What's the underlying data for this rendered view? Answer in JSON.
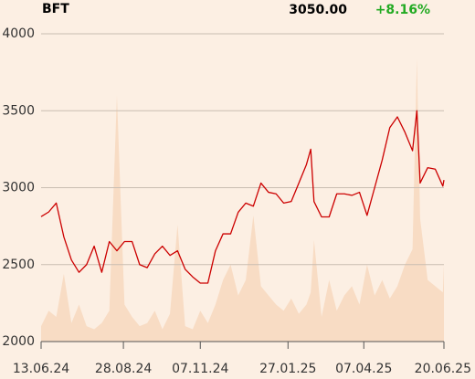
{
  "chart_data": {
    "type": "line",
    "title": "BFT",
    "last_price": "3050.00",
    "change": "+8.16%",
    "x": [
      "13.06.24",
      "20.06.24",
      "27.06.24",
      "04.07.24",
      "11.07.24",
      "18.07.24",
      "25.07.24",
      "01.08.24",
      "08.08.24",
      "15.08.24",
      "22.08.24",
      "29.08.24",
      "05.09.24",
      "12.09.24",
      "19.09.24",
      "26.09.24",
      "03.10.24",
      "10.10.24",
      "17.10.24",
      "24.10.24",
      "31.10.24",
      "07.11.24",
      "14.11.24",
      "21.11.24",
      "28.11.24",
      "05.12.24",
      "12.12.24",
      "19.12.24",
      "26.12.24",
      "02.01.25",
      "09.01.25",
      "16.01.25",
      "23.01.25",
      "30.01.25",
      "06.02.25",
      "13.02.25",
      "17.02.25",
      "20.02.25",
      "27.02.25",
      "06.03.25",
      "13.03.25",
      "20.03.25",
      "27.03.25",
      "03.04.25",
      "10.04.25",
      "17.04.25",
      "24.04.25",
      "01.05.25",
      "08.05.25",
      "15.05.25",
      "22.05.25",
      "26.05.25",
      "29.05.25",
      "05.06.25",
      "12.06.25",
      "19.06.25",
      "20.06.25"
    ],
    "series": [
      {
        "color": "#cc0000",
        "values": [
          2812,
          2842,
          2900,
          2680,
          2530,
          2450,
          2500,
          2620,
          2450,
          2650,
          2590,
          2650,
          2650,
          2500,
          2480,
          2570,
          2620,
          2560,
          2590,
          2470,
          2420,
          2380,
          2380,
          2590,
          2700,
          2700,
          2840,
          2900,
          2880,
          3030,
          2970,
          2960,
          2900,
          2910,
          3030,
          3150,
          3250,
          2910,
          2810,
          2810,
          2960,
          2960,
          2950,
          2970,
          2820,
          3000,
          3180,
          3390,
          3460,
          3360,
          3240,
          3500,
          3030,
          3130,
          3120,
          3010,
          3050
        ]
      },
      {
        "color": "#f8dcc4",
        "axis": "y2",
        "values": [
          5,
          10,
          8,
          22,
          6,
          12,
          5,
          4,
          6,
          10,
          80,
          12,
          8,
          5,
          6,
          10,
          4,
          9,
          38,
          5,
          4,
          10,
          6,
          12,
          20,
          25,
          15,
          20,
          41,
          18,
          15,
          12,
          10,
          14,
          9,
          12,
          16,
          33,
          8,
          20,
          10,
          15,
          18,
          12,
          25,
          15,
          20,
          14,
          18,
          25,
          30,
          92,
          40,
          20,
          18,
          16,
          25
        ]
      }
    ],
    "xlim": [
      "13.06.24",
      "20.06.25"
    ],
    "xticks": [
      "13.06.24",
      "28.08.24",
      "07.11.24",
      "27.01.25",
      "07.04.25",
      "20.06.25"
    ],
    "ylim": [
      2000,
      4000
    ],
    "yticks": [
      2000,
      2500,
      3000,
      3500,
      4000
    ],
    "y2lim": [
      0,
      100
    ],
    "grid": true,
    "change_color": "#22aa22"
  }
}
